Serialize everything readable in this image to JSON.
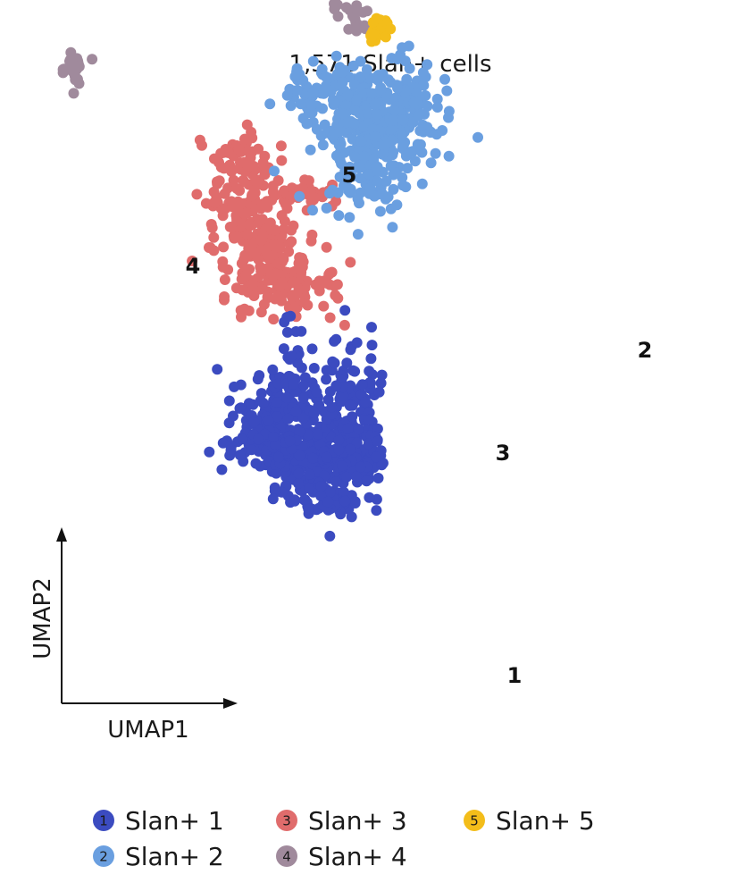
{
  "chart_data": {
    "type": "scatter",
    "title": "1,571 Slan+ cells",
    "xlabel": "UMAP1",
    "ylabel": "UMAP2",
    "grid": false,
    "legend_position": "bottom",
    "series": [
      {
        "name": "Slan+ 1",
        "number": "1",
        "color": "#3b4bc0"
      },
      {
        "name": "Slan+ 2",
        "number": "2",
        "color": "#6a9fe0"
      },
      {
        "name": "Slan+ 3",
        "number": "3",
        "color": "#e06c6c"
      },
      {
        "name": "Slan+ 4",
        "number": "4",
        "color": "#a08a9c"
      },
      {
        "name": "Slan+ 5",
        "number": "5",
        "color": "#f3bd1a"
      }
    ],
    "cluster_labels": [
      {
        "text": "1",
        "x": 6.6,
        "y": -7.6
      },
      {
        "text": "2",
        "x": 8.2,
        "y": 2.9
      },
      {
        "text": "3",
        "x": 5.5,
        "y": -1.5
      },
      {
        "text": "4",
        "x": -3.0,
        "y": 5.4
      },
      {
        "text": "5",
        "x": 2.9,
        "y": 8.5
      }
    ]
  }
}
